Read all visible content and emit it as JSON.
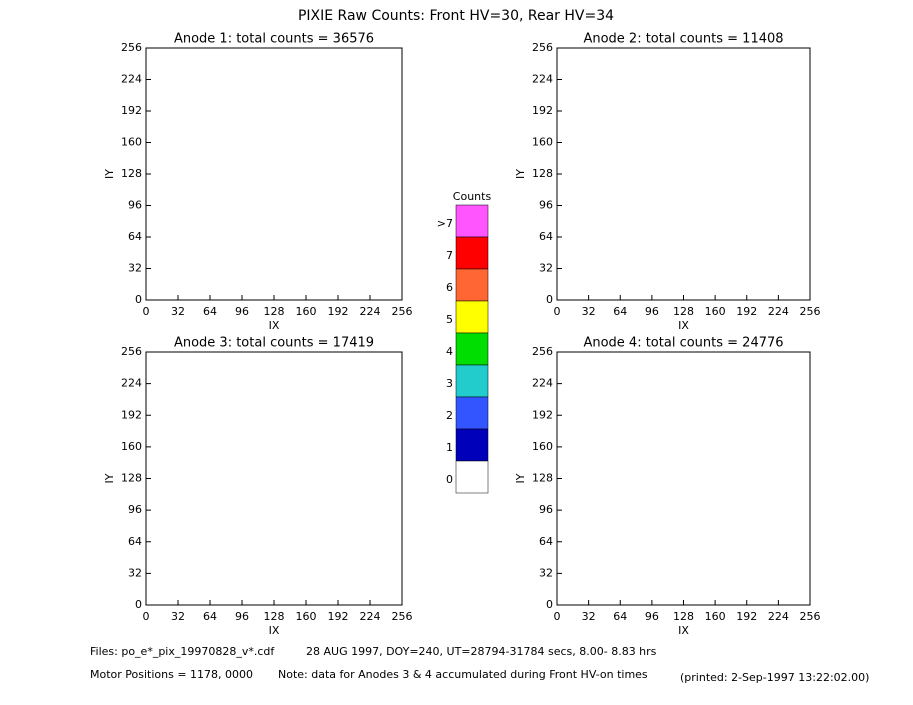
{
  "title": "PIXIE Raw Counts:  Front HV=30, Rear HV=34",
  "colorbar": {
    "title": "Counts",
    "labels": [
      ">7",
      "7",
      "6",
      "5",
      "4",
      "3",
      "2",
      "1",
      "0"
    ],
    "colors": [
      "#ff55ff",
      "#ff0000",
      "#ff6633",
      "#ffff00",
      "#00dd00",
      "#22cccc",
      "#3355ff",
      "#0000bb",
      "#ffffff"
    ]
  },
  "chart_data": [
    {
      "type": "heatmap",
      "title": "Anode 1: total counts = 36576",
      "xlabel": "IX",
      "ylabel": "IY",
      "xlim": [
        0,
        256
      ],
      "ylim": [
        0,
        256
      ],
      "xticks": [
        0,
        32,
        64,
        96,
        128,
        160,
        192,
        224,
        256
      ],
      "yticks": [
        0,
        32,
        64,
        96,
        128,
        160,
        192,
        224,
        256
      ]
    },
    {
      "type": "heatmap",
      "title": "Anode 2: total counts = 11408",
      "xlabel": "IX",
      "ylabel": "IY",
      "xlim": [
        0,
        256
      ],
      "ylim": [
        0,
        256
      ],
      "xticks": [
        0,
        32,
        64,
        96,
        128,
        160,
        192,
        224,
        256
      ],
      "yticks": [
        0,
        32,
        64,
        96,
        128,
        160,
        192,
        224,
        256
      ]
    },
    {
      "type": "heatmap",
      "title": "Anode 3: total counts = 17419",
      "xlabel": "IX",
      "ylabel": "IY",
      "xlim": [
        0,
        256
      ],
      "ylim": [
        0,
        256
      ],
      "xticks": [
        0,
        32,
        64,
        96,
        128,
        160,
        192,
        224,
        256
      ],
      "yticks": [
        0,
        32,
        64,
        96,
        128,
        160,
        192,
        224,
        256
      ]
    },
    {
      "type": "heatmap",
      "title": "Anode 4: total counts = 24776",
      "xlabel": "IX",
      "ylabel": "IY",
      "xlim": [
        0,
        256
      ],
      "ylim": [
        0,
        256
      ],
      "xticks": [
        0,
        32,
        64,
        96,
        128,
        160,
        192,
        224,
        256
      ],
      "yticks": [
        0,
        32,
        64,
        96,
        128,
        160,
        192,
        224,
        256
      ]
    }
  ],
  "footer": {
    "files": "Files: po_e*_pix_19970828_v*.cdf",
    "date": "28 AUG 1997, DOY=240, UT=28794-31784 secs,  8.00- 8.83 hrs",
    "motor": "Motor Positions = 1178, 0000",
    "note": "Note: data for Anodes 3 & 4 accumulated during Front HV-on times",
    "printed": "(printed:  2-Sep-1997 13:22:02.00)"
  }
}
